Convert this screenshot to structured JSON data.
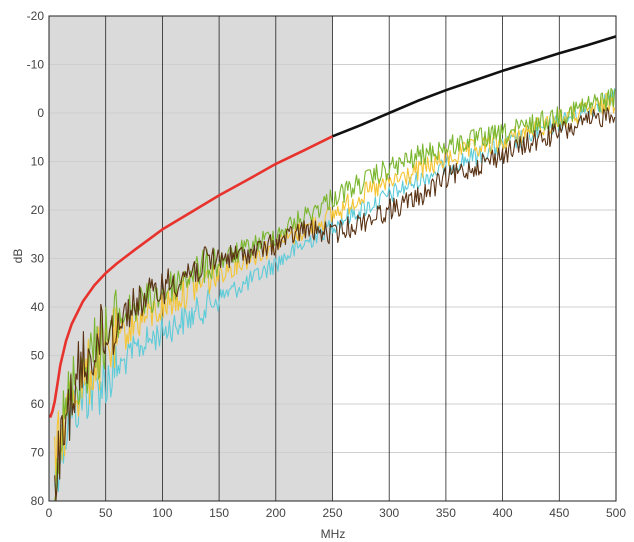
{
  "chart_data": {
    "type": "line",
    "title": "",
    "xlabel": "MHz",
    "ylabel": "dB",
    "xlim": [
      0,
      500
    ],
    "ylim": [
      80,
      -20
    ],
    "y_inverted": true,
    "x_ticks": [
      0,
      50,
      100,
      150,
      200,
      250,
      300,
      350,
      400,
      450,
      500
    ],
    "y_ticks": [
      -20,
      -10,
      0,
      10,
      20,
      30,
      40,
      50,
      60,
      70,
      80
    ],
    "x_tick_labels": [
      "0",
      "50",
      "100",
      "150",
      "200",
      "250",
      "300",
      "350",
      "400",
      "450",
      "500"
    ],
    "y_tick_labels": [
      "-20",
      "-10",
      "0",
      "10",
      "20",
      "30",
      "40",
      "50",
      "60",
      "70",
      "80"
    ],
    "grid": {
      "vertical": true,
      "horizontal": true
    },
    "shaded_region": {
      "x": [
        0,
        250
      ],
      "color": "#d9dad9"
    },
    "colors": {
      "limit_low": "#e8322d",
      "limit_high": "#111111",
      "background": "#ffffff",
      "grid_v": "#222222",
      "grid_h": "#cfcfcf"
    },
    "limit_line": {
      "split_at_x": 250,
      "x": [
        1,
        3,
        5,
        8,
        10,
        15,
        20,
        30,
        40,
        50,
        60,
        75,
        100,
        125,
        150,
        175,
        200,
        225,
        250,
        275,
        300,
        325,
        350,
        375,
        400,
        425,
        450,
        475,
        500
      ],
      "y": [
        62.8,
        61.5,
        59.5,
        55.0,
        52.0,
        47.0,
        43.5,
        38.8,
        35.5,
        33.0,
        31.0,
        28.3,
        24.0,
        20.5,
        17.0,
        13.8,
        10.5,
        7.7,
        4.8,
        2.5,
        0.0,
        -2.5,
        -4.7,
        -6.7,
        -8.7,
        -10.5,
        -12.3,
        -14.0,
        -15.8
      ]
    },
    "series": [
      {
        "color": "#5ecbd9",
        "noise": 2.0,
        "x": [
          5,
          10,
          15,
          20,
          30,
          40,
          50,
          60,
          75,
          100,
          125,
          150,
          175,
          200,
          225,
          250,
          275,
          300,
          325,
          350,
          375,
          400,
          425,
          450,
          475,
          500
        ],
        "y": [
          75.0,
          70.0,
          65.0,
          62.0,
          58.0,
          57.0,
          55.0,
          53.0,
          49.0,
          45.0,
          42.0,
          38.0,
          35.0,
          31.0,
          27.0,
          23.0,
          20.0,
          17.0,
          14.0,
          11.0,
          9.0,
          7.0,
          4.5,
          2.0,
          -0.5,
          -3.5
        ]
      },
      {
        "color": "#f5c535",
        "noise": 2.3,
        "x": [
          5,
          10,
          15,
          20,
          30,
          40,
          50,
          60,
          75,
          100,
          125,
          150,
          175,
          200,
          225,
          250,
          275,
          300,
          325,
          350,
          375,
          400,
          425,
          450,
          475,
          500
        ],
        "y": [
          72.0,
          67.0,
          63.0,
          58.0,
          55.0,
          52.0,
          49.0,
          47.0,
          43.5,
          40.0,
          36.0,
          33.0,
          30.0,
          27.0,
          24.0,
          21.0,
          17.0,
          14.5,
          12.0,
          9.5,
          7.5,
          6.0,
          3.5,
          1.5,
          -0.5,
          -2.5
        ]
      },
      {
        "color": "#7ab62f",
        "noise": 2.3,
        "x": [
          5,
          10,
          15,
          20,
          30,
          40,
          50,
          60,
          75,
          100,
          125,
          150,
          175,
          200,
          225,
          250,
          275,
          300,
          325,
          350,
          375,
          400,
          425,
          450,
          475,
          500
        ],
        "y": [
          73.0,
          66.0,
          62.0,
          56.0,
          52.0,
          49.0,
          46.0,
          43.0,
          40.0,
          37.0,
          33.0,
          30.5,
          28.0,
          25.0,
          21.5,
          17.5,
          14.5,
          11.5,
          9.0,
          7.0,
          5.5,
          4.5,
          2.5,
          0.5,
          -1.5,
          -3.5
        ]
      },
      {
        "color": "#5a3315",
        "noise": 2.3,
        "x": [
          5,
          10,
          15,
          20,
          30,
          40,
          50,
          60,
          75,
          100,
          125,
          150,
          175,
          200,
          225,
          250,
          275,
          300,
          325,
          350,
          375,
          400,
          425,
          450,
          475,
          500
        ],
        "y": [
          76.0,
          70.0,
          64.0,
          58.0,
          52.0,
          48.0,
          45.5,
          43.0,
          39.5,
          36.0,
          32.5,
          30.0,
          29.0,
          27.0,
          24.0,
          25.0,
          22.5,
          20.0,
          17.5,
          13.5,
          11.0,
          8.5,
          6.0,
          4.0,
          2.0,
          -0.5
        ]
      }
    ]
  }
}
